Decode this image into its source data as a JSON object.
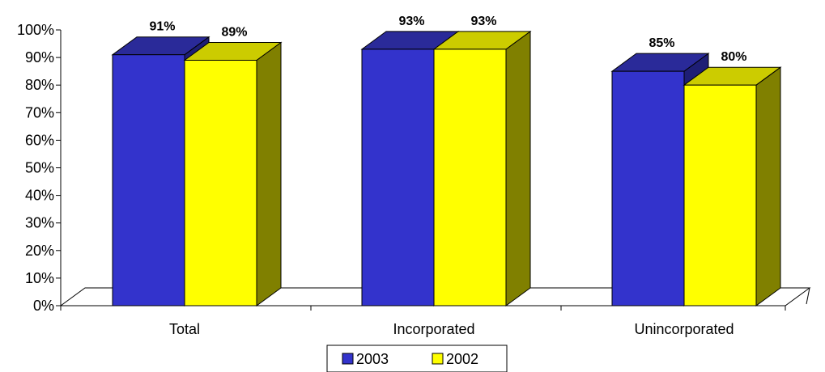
{
  "chart_data": {
    "type": "bar",
    "categories": [
      "Total",
      "Incorporated",
      "Unincorporated"
    ],
    "series": [
      {
        "name": "2003",
        "values": [
          91,
          93,
          85
        ],
        "labels": [
          "91%",
          "93%",
          "85%"
        ]
      },
      {
        "name": "2002",
        "values": [
          89,
          93,
          80
        ],
        "labels": [
          "89%",
          "93%",
          "80%"
        ]
      }
    ],
    "y_ticks": [
      "0%",
      "10%",
      "20%",
      "30%",
      "40%",
      "50%",
      "60%",
      "70%",
      "80%",
      "90%",
      "100%"
    ],
    "ylim": [
      0,
      100
    ],
    "legend_position": "bottom",
    "grid": false,
    "style": "3d-column",
    "colors": {
      "2003": {
        "front": "#3333CC",
        "top": "#2A2A99",
        "side": "#1E1E75"
      },
      "2002": {
        "front": "#FFFF00",
        "top": "#CCCC00",
        "side": "#808000"
      }
    }
  }
}
